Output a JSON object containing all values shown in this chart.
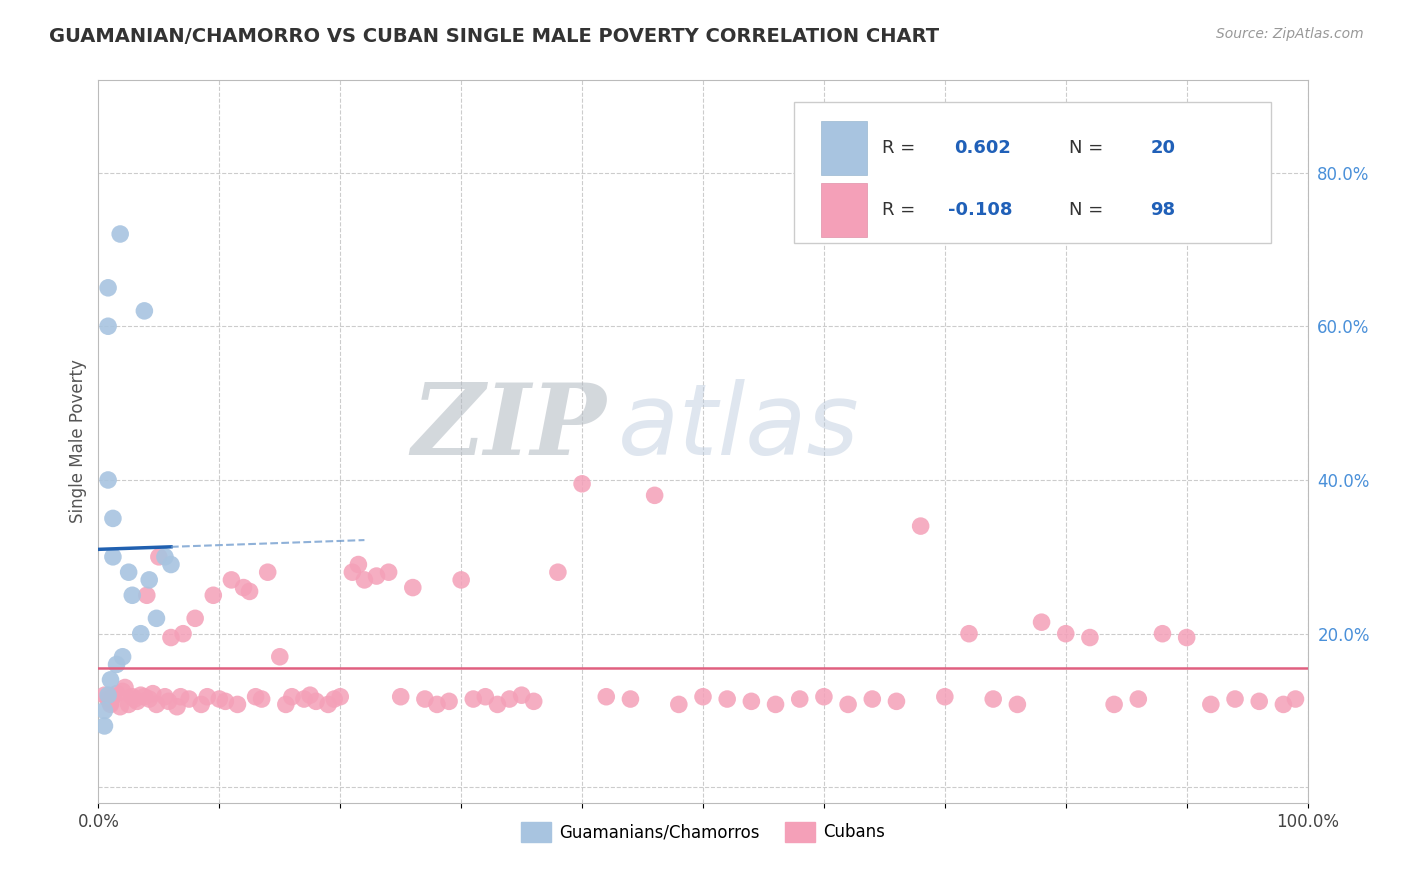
{
  "title": "GUAMANIAN/CHAMORRO VS CUBAN SINGLE MALE POVERTY CORRELATION CHART",
  "source": "Source: ZipAtlas.com",
  "ylabel": "Single Male Poverty",
  "xlim": [
    0.0,
    1.0
  ],
  "ylim": [
    -0.02,
    0.92
  ],
  "xticks": [
    0.0,
    0.1,
    0.2,
    0.3,
    0.4,
    0.5,
    0.6,
    0.7,
    0.8,
    0.9,
    1.0
  ],
  "xtick_labels_show": [
    0.0,
    1.0
  ],
  "ytick_right_vals": [
    0.0,
    0.2,
    0.4,
    0.6,
    0.8
  ],
  "ytick_right_labels": [
    "",
    "20.0%",
    "40.0%",
    "60.0%",
    "80.0%"
  ],
  "r_guam": "0.602",
  "n_guam": "20",
  "r_cuban": "-0.108",
  "n_cuban": "98",
  "guam_color": "#a8c4e0",
  "cuban_color": "#f4a0b8",
  "guam_line_color": "#2060b0",
  "guam_dash_color": "#6090c8",
  "cuban_line_color": "#e06080",
  "watermark_zip": "ZIP",
  "watermark_atlas": "atlas",
  "legend_labels": [
    "Guamanians/Chamorros",
    "Cubans"
  ],
  "guam_scatter_x": [
    0.018,
    0.038,
    0.008,
    0.008,
    0.008,
    0.012,
    0.012,
    0.025,
    0.028,
    0.042,
    0.055,
    0.06,
    0.048,
    0.035,
    0.02,
    0.015,
    0.01,
    0.008,
    0.005,
    0.005
  ],
  "guam_scatter_y": [
    0.72,
    0.62,
    0.65,
    0.6,
    0.4,
    0.35,
    0.3,
    0.28,
    0.25,
    0.27,
    0.3,
    0.29,
    0.22,
    0.2,
    0.17,
    0.16,
    0.14,
    0.12,
    0.1,
    0.08
  ],
  "cuban_scatter_x": [
    0.005,
    0.008,
    0.01,
    0.012,
    0.015,
    0.018,
    0.02,
    0.022,
    0.025,
    0.028,
    0.03,
    0.032,
    0.035,
    0.038,
    0.04,
    0.042,
    0.045,
    0.048,
    0.05,
    0.055,
    0.058,
    0.06,
    0.065,
    0.068,
    0.07,
    0.075,
    0.08,
    0.085,
    0.09,
    0.095,
    0.1,
    0.105,
    0.11,
    0.115,
    0.12,
    0.125,
    0.13,
    0.135,
    0.14,
    0.15,
    0.155,
    0.16,
    0.17,
    0.175,
    0.18,
    0.19,
    0.195,
    0.2,
    0.21,
    0.215,
    0.22,
    0.23,
    0.24,
    0.25,
    0.26,
    0.27,
    0.28,
    0.29,
    0.3,
    0.31,
    0.32,
    0.33,
    0.34,
    0.35,
    0.36,
    0.38,
    0.4,
    0.42,
    0.44,
    0.46,
    0.48,
    0.5,
    0.52,
    0.54,
    0.56,
    0.58,
    0.6,
    0.62,
    0.64,
    0.66,
    0.68,
    0.7,
    0.72,
    0.74,
    0.76,
    0.78,
    0.8,
    0.82,
    0.84,
    0.86,
    0.88,
    0.9,
    0.92,
    0.94,
    0.96,
    0.98,
    0.99,
    0.01
  ],
  "cuban_scatter_y": [
    0.12,
    0.115,
    0.11,
    0.118,
    0.122,
    0.105,
    0.125,
    0.13,
    0.108,
    0.118,
    0.115,
    0.112,
    0.12,
    0.118,
    0.25,
    0.115,
    0.122,
    0.108,
    0.3,
    0.118,
    0.112,
    0.195,
    0.105,
    0.118,
    0.2,
    0.115,
    0.22,
    0.108,
    0.118,
    0.25,
    0.115,
    0.112,
    0.27,
    0.108,
    0.26,
    0.255,
    0.118,
    0.115,
    0.28,
    0.17,
    0.108,
    0.118,
    0.115,
    0.12,
    0.112,
    0.108,
    0.115,
    0.118,
    0.28,
    0.29,
    0.27,
    0.275,
    0.28,
    0.118,
    0.26,
    0.115,
    0.108,
    0.112,
    0.27,
    0.115,
    0.118,
    0.108,
    0.115,
    0.12,
    0.112,
    0.28,
    0.395,
    0.118,
    0.115,
    0.38,
    0.108,
    0.118,
    0.115,
    0.112,
    0.108,
    0.115,
    0.118,
    0.108,
    0.115,
    0.112,
    0.34,
    0.118,
    0.2,
    0.115,
    0.108,
    0.215,
    0.2,
    0.195,
    0.108,
    0.115,
    0.2,
    0.195,
    0.108,
    0.115,
    0.112,
    0.108,
    0.115,
    0.108
  ]
}
